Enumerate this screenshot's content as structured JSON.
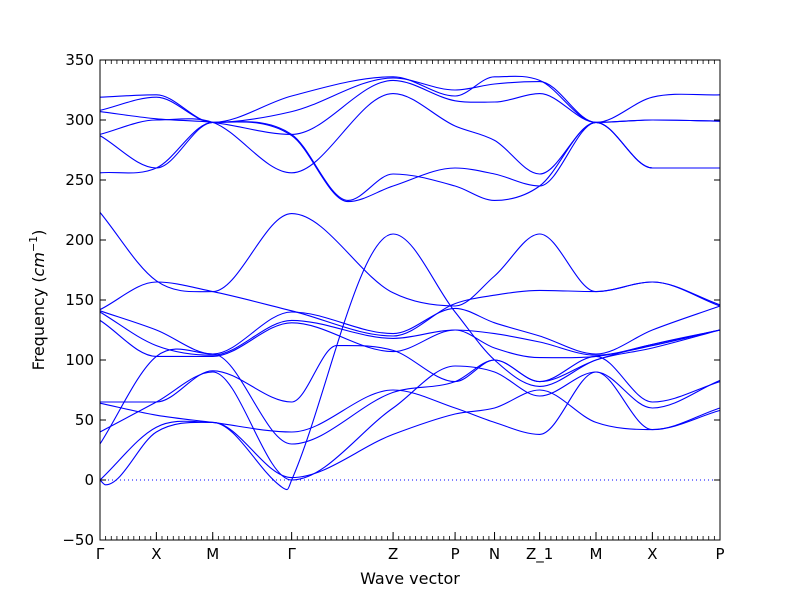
{
  "chart_data": {
    "type": "line",
    "xlabel": "Wave vector",
    "ylabel_text": "Frequency (",
    "ylabel_unit": "cm",
    "ylabel_exp": "−1",
    "ylabel_close": ")",
    "ylim": [
      -50,
      350
    ],
    "yticks": [
      -50,
      0,
      50,
      100,
      150,
      200,
      250,
      300,
      350
    ],
    "grid": false,
    "legend": "none",
    "kpoints": [
      {
        "label": "Γ",
        "x": 0
      },
      {
        "label": "X",
        "x": 0.5
      },
      {
        "label": "M",
        "x": 1
      },
      {
        "label": "Γ",
        "x": 1.7
      },
      {
        "label": "Z",
        "x": 2.6
      },
      {
        "label": "P",
        "x": 3.15
      },
      {
        "label": "N",
        "x": 3.5
      },
      {
        "label": "Z_1",
        "x": 3.9
      },
      {
        "label": "M",
        "x": 4.4
      },
      {
        "label": "X",
        "x": 4.9
      },
      {
        "label": "P",
        "x": 5.5
      }
    ],
    "xlim": [
      0,
      5.5
    ],
    "zero_line": {
      "y": 0,
      "style": "dotted",
      "color": "#0000ff"
    },
    "line_color": "#0000ff",
    "series": [
      {
        "x": [
          0,
          0.5,
          1,
          1.7,
          2.6,
          3.15,
          3.5,
          3.9,
          4.4,
          4.9,
          5.5
        ],
        "values": [
          319,
          321,
          298,
          320,
          336,
          320,
          336,
          333,
          298,
          319,
          321
        ]
      },
      {
        "x": [
          0,
          0.5,
          1,
          1.7,
          2.6,
          3.15,
          3.5,
          3.9,
          4.4,
          4.9,
          5.5
        ],
        "values": [
          308,
          319,
          298,
          307,
          335,
          325,
          330,
          332,
          298,
          300,
          299
        ]
      },
      {
        "x": [
          0,
          0.5,
          1,
          1.7,
          2.6,
          3.15,
          3.5,
          3.9,
          4.4,
          4.9,
          5.5
        ],
        "values": [
          307,
          301,
          298,
          288,
          333,
          316,
          315,
          322,
          298,
          300,
          299
        ]
      },
      {
        "x": [
          0,
          0.5,
          1,
          1.7,
          2.6,
          3.15,
          3.5,
          3.9,
          4.4,
          4.9,
          5.5
        ],
        "values": [
          288,
          300,
          298,
          256,
          322,
          295,
          283,
          255,
          298,
          260,
          260
        ]
      },
      {
        "x": [
          0,
          0.5,
          1,
          1.7,
          2.2,
          2.6,
          3.15,
          3.5,
          3.9,
          4.4,
          4.9,
          5.5
        ],
        "values": [
          287,
          260,
          298,
          287,
          232,
          245,
          260,
          255,
          245,
          298,
          260,
          260
        ]
      },
      {
        "x": [
          0,
          0.5,
          1,
          1.7,
          2.2,
          2.6,
          3.15,
          3.5,
          3.9,
          4.4,
          4.9,
          5.5
        ],
        "values": [
          256,
          260,
          298,
          288,
          233,
          255,
          245,
          233,
          245,
          298,
          260,
          260
        ]
      },
      {
        "x": [
          0,
          0.5,
          1,
          1.7,
          2.6,
          3.15,
          3.5,
          3.9,
          4.4,
          4.9,
          5.5
        ],
        "values": [
          223,
          166,
          157,
          222,
          156,
          145,
          170,
          205,
          157,
          165,
          145
        ]
      },
      {
        "x": [
          0,
          0.5,
          1,
          1.7,
          2.6,
          3.15,
          3.5,
          3.9,
          4.4,
          4.9,
          5.5
        ],
        "values": [
          142,
          165,
          157,
          141,
          120,
          147,
          154,
          158,
          157,
          165,
          146
        ]
      },
      {
        "x": [
          0,
          0.5,
          1,
          1.7,
          2.6,
          3.15,
          3.5,
          3.9,
          4.4,
          4.9,
          5.5
        ],
        "values": [
          141,
          125,
          105,
          140,
          122,
          143,
          131,
          120,
          105,
          125,
          145
        ]
      },
      {
        "x": [
          0,
          0.5,
          1,
          1.7,
          2.6,
          3.15,
          3.5,
          3.9,
          4.4,
          4.9,
          5.5
        ],
        "values": [
          140,
          112,
          104,
          133,
          118,
          125,
          122,
          115,
          104,
          113,
          125
        ]
      },
      {
        "x": [
          0,
          0.5,
          1,
          1.7,
          2.6,
          3.15,
          3.5,
          3.9,
          4.4,
          4.9,
          5.5
        ],
        "values": [
          133,
          103,
          103,
          131,
          107,
          125,
          110,
          102,
          103,
          112,
          125
        ]
      },
      {
        "x": [
          0,
          0.5,
          1,
          1.7,
          2.1,
          2.6,
          3.15,
          3.5,
          3.9,
          4.4,
          4.9,
          5.5
        ],
        "values": [
          65,
          65,
          91,
          65,
          112,
          108,
          82,
          100,
          82,
          103,
          65,
          82
        ]
      },
      {
        "x": [
          0,
          0.5,
          1,
          1.7,
          2.6,
          3.15,
          3.5,
          3.9,
          4.4,
          4.9,
          5.5
        ],
        "values": [
          64,
          54,
          48,
          40,
          75,
          60,
          48,
          38,
          90,
          42,
          58
        ]
      },
      {
        "x": [
          0,
          0.5,
          1,
          1.7,
          2.6,
          3.15,
          3.5,
          3.9,
          4.4,
          4.9,
          5.5
        ],
        "values": [
          40,
          65,
          90,
          0,
          60,
          95,
          90,
          70,
          90,
          60,
          83
        ]
      },
      {
        "x": [
          0,
          0.5,
          1,
          1.7,
          2.6,
          3.15,
          3.5,
          3.9,
          4.4,
          4.9,
          5.5
        ],
        "values": [
          30,
          103,
          105,
          30,
          73,
          82,
          100,
          82,
          100,
          113,
          125
        ]
      },
      {
        "x": [
          0,
          0.5,
          1,
          1.7,
          2.6,
          3.15,
          3.5,
          3.9,
          4.4,
          4.9,
          5.5
        ],
        "values": [
          0,
          44,
          48,
          2,
          38,
          55,
          60,
          75,
          48,
          42,
          60
        ]
      },
      {
        "x": [
          0,
          0.05,
          0.5,
          1,
          1.6,
          1.66,
          1.7,
          2.6,
          3.15,
          3.5,
          3.9,
          4.4,
          4.9,
          5.5
        ],
        "values": [
          0,
          -4,
          40,
          48,
          -5,
          -8,
          0,
          205,
          140,
          100,
          78,
          100,
          110,
          125
        ]
      }
    ]
  }
}
